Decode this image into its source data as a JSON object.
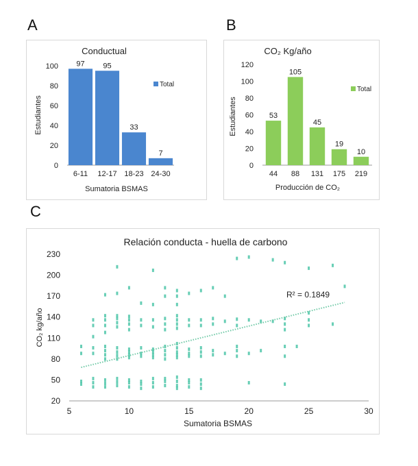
{
  "panels": {
    "a": {
      "letter": "A"
    },
    "b": {
      "letter": "B"
    },
    "c": {
      "letter": "C"
    }
  },
  "colors": {
    "blue": "#4a86cf",
    "green": "#8ccd5a",
    "teal": "#4cc5a8",
    "trend": "#6fc9a6",
    "axis": "#999999",
    "grid": "#e6e6e6",
    "text": "#222222",
    "muted": "#444444"
  },
  "chart_data": [
    {
      "id": "A",
      "type": "bar",
      "title": "Conductual",
      "categories": [
        "6-11",
        "12-17",
        "18-23",
        "24-30"
      ],
      "values": [
        97,
        95,
        33,
        7
      ],
      "series_name": "Total",
      "xlabel": "Sumatoria BSMAS",
      "ylabel": "Estudiantes",
      "ylim": [
        0,
        100
      ],
      "yticks": [
        0,
        20,
        40,
        60,
        80,
        100
      ],
      "legend": "right"
    },
    {
      "id": "B",
      "type": "bar",
      "title": "CO₂ Kg/año",
      "categories": [
        "44",
        "88",
        "131",
        "175",
        "219"
      ],
      "values": [
        53,
        105,
        45,
        19,
        10
      ],
      "series_name": "Total",
      "xlabel": "Producción de CO₂",
      "ylabel": "Estudiantes",
      "ylim": [
        0,
        120
      ],
      "yticks": [
        0,
        20,
        40,
        60,
        80,
        100,
        120
      ],
      "legend": "right"
    },
    {
      "id": "C",
      "type": "scatter",
      "title": "Relación conducta - huella de carbono",
      "xlabel": "Sumatoria BSMAS",
      "ylabel": "CO₂ kg/año",
      "xlim": [
        5,
        30
      ],
      "ylim": [
        20,
        230
      ],
      "xticks": [
        5,
        10,
        15,
        20,
        25,
        30
      ],
      "yticks": [
        20,
        50,
        80,
        110,
        140,
        170,
        200,
        230
      ],
      "annotation": "R² = 0.1849",
      "trendline": {
        "x": [
          6,
          28
        ],
        "y": [
          68,
          161
        ]
      },
      "points": [
        [
          6,
          44
        ],
        [
          6,
          48
        ],
        [
          6,
          88
        ],
        [
          6,
          98
        ],
        [
          7,
          40
        ],
        [
          7,
          46
        ],
        [
          7,
          52
        ],
        [
          7,
          88
        ],
        [
          7,
          96
        ],
        [
          7,
          112
        ],
        [
          7,
          128
        ],
        [
          7,
          136
        ],
        [
          8,
          40
        ],
        [
          8,
          45
        ],
        [
          8,
          50
        ],
        [
          8,
          80
        ],
        [
          8,
          86
        ],
        [
          8,
          92
        ],
        [
          8,
          98
        ],
        [
          8,
          118
        ],
        [
          8,
          128
        ],
        [
          8,
          136
        ],
        [
          8,
          142
        ],
        [
          8,
          172
        ],
        [
          9,
          42
        ],
        [
          9,
          47
        ],
        [
          9,
          52
        ],
        [
          9,
          80
        ],
        [
          9,
          85
        ],
        [
          9,
          90
        ],
        [
          9,
          96
        ],
        [
          9,
          126
        ],
        [
          9,
          132
        ],
        [
          9,
          138
        ],
        [
          9,
          142
        ],
        [
          9,
          174
        ],
        [
          9,
          212
        ],
        [
          10,
          40
        ],
        [
          10,
          46
        ],
        [
          10,
          50
        ],
        [
          10,
          82
        ],
        [
          10,
          86
        ],
        [
          10,
          90
        ],
        [
          10,
          94
        ],
        [
          10,
          122
        ],
        [
          10,
          130
        ],
        [
          10,
          136
        ],
        [
          10,
          141
        ],
        [
          10,
          182
        ],
        [
          11,
          38
        ],
        [
          11,
          44
        ],
        [
          11,
          48
        ],
        [
          11,
          84
        ],
        [
          11,
          88
        ],
        [
          11,
          96
        ],
        [
          11,
          128
        ],
        [
          11,
          136
        ],
        [
          11,
          160
        ],
        [
          12,
          40
        ],
        [
          12,
          46
        ],
        [
          12,
          52
        ],
        [
          12,
          82
        ],
        [
          12,
          86
        ],
        [
          12,
          90
        ],
        [
          12,
          94
        ],
        [
          12,
          126
        ],
        [
          12,
          136
        ],
        [
          12,
          158
        ],
        [
          12,
          207
        ],
        [
          13,
          42
        ],
        [
          13,
          48
        ],
        [
          13,
          52
        ],
        [
          13,
          80
        ],
        [
          13,
          86
        ],
        [
          13,
          92
        ],
        [
          13,
          98
        ],
        [
          13,
          122
        ],
        [
          13,
          130
        ],
        [
          13,
          138
        ],
        [
          13,
          170
        ],
        [
          13,
          182
        ],
        [
          14,
          38
        ],
        [
          14,
          42
        ],
        [
          14,
          48
        ],
        [
          14,
          54
        ],
        [
          14,
          82
        ],
        [
          14,
          86
        ],
        [
          14,
          90
        ],
        [
          14,
          96
        ],
        [
          14,
          102
        ],
        [
          14,
          124
        ],
        [
          14,
          130
        ],
        [
          14,
          136
        ],
        [
          14,
          142
        ],
        [
          14,
          158
        ],
        [
          14,
          170
        ],
        [
          14,
          178
        ],
        [
          15,
          40
        ],
        [
          15,
          46
        ],
        [
          15,
          50
        ],
        [
          15,
          84
        ],
        [
          15,
          88
        ],
        [
          15,
          94
        ],
        [
          15,
          128
        ],
        [
          15,
          136
        ],
        [
          15,
          174
        ],
        [
          16,
          38
        ],
        [
          16,
          44
        ],
        [
          16,
          50
        ],
        [
          16,
          84
        ],
        [
          16,
          90
        ],
        [
          16,
          96
        ],
        [
          16,
          128
        ],
        [
          16,
          136
        ],
        [
          16,
          178
        ],
        [
          17,
          86
        ],
        [
          17,
          92
        ],
        [
          17,
          130
        ],
        [
          17,
          138
        ],
        [
          17,
          182
        ],
        [
          18,
          88
        ],
        [
          18,
          134
        ],
        [
          18,
          170
        ],
        [
          19,
          84
        ],
        [
          19,
          92
        ],
        [
          19,
          98
        ],
        [
          19,
          128
        ],
        [
          19,
          137
        ],
        [
          19,
          224
        ],
        [
          20,
          46
        ],
        [
          20,
          88
        ],
        [
          20,
          136
        ],
        [
          20,
          226
        ],
        [
          21,
          92
        ],
        [
          21,
          134
        ],
        [
          22,
          134
        ],
        [
          22,
          222
        ],
        [
          23,
          44
        ],
        [
          23,
          84
        ],
        [
          23,
          98
        ],
        [
          23,
          122
        ],
        [
          23,
          130
        ],
        [
          23,
          138
        ],
        [
          23,
          218
        ],
        [
          24,
          98
        ],
        [
          25,
          128
        ],
        [
          25,
          136
        ],
        [
          25,
          146
        ],
        [
          25,
          210
        ],
        [
          27,
          130
        ],
        [
          27,
          214
        ],
        [
          28,
          184
        ]
      ]
    }
  ]
}
